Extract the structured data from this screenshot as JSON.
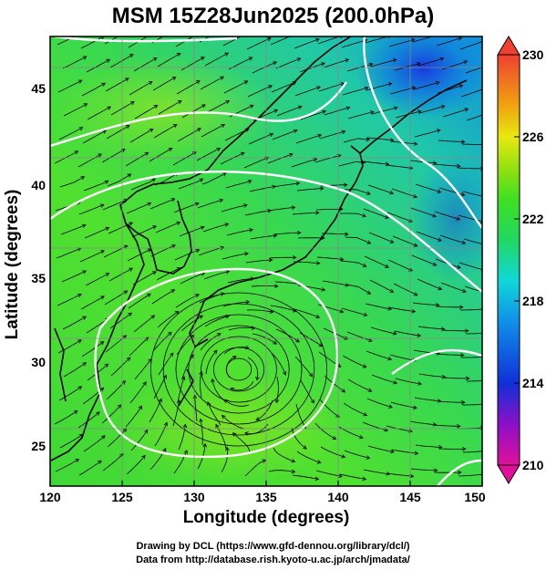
{
  "title": "MSM 15Z28Jun2025 (200.0hPa)",
  "xlabel": "Longitude (degrees)",
  "ylabel": "Latitude  (degrees)",
  "credits": {
    "line1": "Drawing by DCL (https://www.gfd-dennou.org/library/dcl/)",
    "line2": "Data from http://database.rish.kyoto-u.ac.jp/arch/jmadata/"
  },
  "map": {
    "lon_range": [
      120,
      150
    ],
    "lat_range": [
      22.5,
      47.5
    ],
    "x_ticks": [
      "120",
      "125",
      "130",
      "135",
      "140",
      "145",
      "150"
    ],
    "y_ticks": [
      "25",
      "30",
      "35",
      "40",
      "45"
    ],
    "grid": true,
    "field": "streamlines + shading",
    "contour_color": "#ffffff",
    "coastline_color": "#000000"
  },
  "colorbar": {
    "min": 210,
    "max": 230,
    "tick_labels": [
      "230",
      "226",
      "222",
      "218",
      "214",
      "210"
    ],
    "colors": [
      "#e0109a",
      "#8c10c8",
      "#1030d8",
      "#1090e8",
      "#10d8d8",
      "#20d860",
      "#40e020",
      "#90e010",
      "#e8e810",
      "#f0a010",
      "#f05020",
      "#f04030"
    ]
  }
}
